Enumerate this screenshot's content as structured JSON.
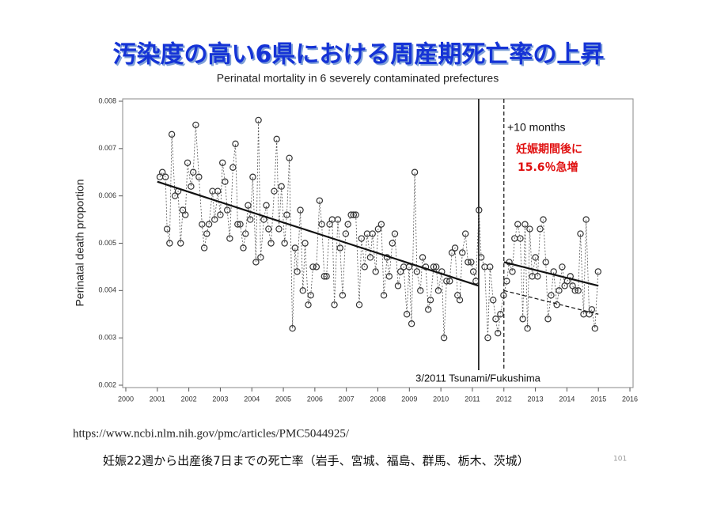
{
  "slide": {
    "title": "汚染度の高い6県における周産期死亡率の上昇",
    "url": "https://www.ncbi.nlm.nih.gov/pmc/articles/PMC5044925/",
    "caption": "妊娠22週から出産後7日までの死亡率（岩手、宮城、福島、群馬、栃木、茨城）",
    "page_number": "101"
  },
  "chart_data": {
    "type": "line",
    "title": "Perinatal mortality in 6 severely contaminated prefectures",
    "y_label": "Perinatal death proportion",
    "xlim": [
      1999.9,
      2016.1
    ],
    "ylim": [
      0.00195,
      0.00805
    ],
    "xticks": [
      2000,
      2001,
      2002,
      2003,
      2004,
      2005,
      2006,
      2007,
      2008,
      2009,
      2010,
      2011,
      2012,
      2013,
      2014,
      2015,
      2016
    ],
    "yticks": [
      0.002,
      0.003,
      0.004,
      0.005,
      0.006,
      0.007,
      0.008
    ],
    "series": [
      {
        "color": "#333333",
        "marker": "circle",
        "line": "dotted",
        "x": [
          2001.08,
          2001.16,
          2001.26,
          2001.31,
          2001.39,
          2001.46,
          2001.56,
          2001.66,
          2001.74,
          2001.81,
          2001.89,
          2001.96,
          2002.07,
          2002.14,
          2002.22,
          2002.32,
          2002.42,
          2002.49,
          2002.57,
          2002.64,
          2002.75,
          2002.82,
          2002.92,
          2003.0,
          2003.07,
          2003.15,
          2003.22,
          2003.3,
          2003.4,
          2003.48,
          2003.55,
          2003.63,
          2003.73,
          2003.8,
          2003.88,
          2003.95,
          2004.03,
          2004.13,
          2004.21,
          2004.28,
          2004.38,
          2004.46,
          2004.53,
          2004.61,
          2004.71,
          2004.79,
          2004.86,
          2004.94,
          2005.04,
          2005.11,
          2005.19,
          2005.29,
          2005.37,
          2005.44,
          2005.54,
          2005.62,
          2005.69,
          2005.79,
          2005.87,
          2005.94,
          2006.05,
          2006.15,
          2006.22,
          2006.3,
          2006.37,
          2006.47,
          2006.55,
          2006.62,
          2006.73,
          2006.8,
          2006.88,
          2006.98,
          2007.05,
          2007.15,
          2007.23,
          2007.3,
          2007.41,
          2007.48,
          2007.58,
          2007.66,
          2007.76,
          2007.83,
          2007.93,
          2008.01,
          2008.11,
          2008.19,
          2008.29,
          2008.36,
          2008.46,
          2008.54,
          2008.64,
          2008.72,
          2008.82,
          2008.92,
          2008.99,
          2009.07,
          2009.17,
          2009.24,
          2009.35,
          2009.42,
          2009.52,
          2009.6,
          2009.67,
          2009.77,
          2009.85,
          2009.92,
          2010.03,
          2010.1,
          2010.18,
          2010.28,
          2010.35,
          2010.45,
          2010.53,
          2010.6,
          2010.68,
          2010.78,
          2010.86,
          2010.96,
          2011.03,
          2011.11,
          2011.21,
          2011.28,
          2011.39,
          2011.49,
          2011.56,
          2011.66,
          2011.74,
          2011.81,
          2011.89,
          2011.99,
          2012.09,
          2012.17,
          2012.27,
          2012.34,
          2012.44,
          2012.52,
          2012.6,
          2012.67,
          2012.75,
          2012.82,
          2012.9,
          2013.0,
          2013.07,
          2013.15,
          2013.25,
          2013.33,
          2013.4,
          2013.5,
          2013.58,
          2013.68,
          2013.75,
          2013.85,
          2013.93,
          2014.01,
          2014.11,
          2014.18,
          2014.26,
          2014.36,
          2014.43,
          2014.53,
          2014.61,
          2014.71,
          2014.79,
          2014.89,
          2014.99
        ],
        "values": [
          0.0064,
          0.0065,
          0.0064,
          0.0053,
          0.005,
          0.0073,
          0.006,
          0.0061,
          0.005,
          0.0057,
          0.0056,
          0.0067,
          0.0062,
          0.0065,
          0.0075,
          0.0064,
          0.0054,
          0.0049,
          0.0052,
          0.0054,
          0.0061,
          0.0055,
          0.0061,
          0.0056,
          0.0067,
          0.0063,
          0.0057,
          0.0051,
          0.0066,
          0.0071,
          0.0054,
          0.0054,
          0.0049,
          0.0052,
          0.0058,
          0.0055,
          0.0064,
          0.0046,
          0.0076,
          0.0047,
          0.0055,
          0.0058,
          0.0053,
          0.005,
          0.0061,
          0.0072,
          0.0053,
          0.0062,
          0.005,
          0.0056,
          0.0068,
          0.0032,
          0.0049,
          0.0044,
          0.0057,
          0.004,
          0.005,
          0.0037,
          0.0039,
          0.0045,
          0.0045,
          0.0059,
          0.0054,
          0.0043,
          0.0043,
          0.0054,
          0.0055,
          0.0037,
          0.0055,
          0.0049,
          0.0039,
          0.0052,
          0.0054,
          0.0056,
          0.0056,
          0.0056,
          0.0037,
          0.0051,
          0.0045,
          0.0052,
          0.0047,
          0.0052,
          0.0044,
          0.0053,
          0.0054,
          0.0039,
          0.0047,
          0.0043,
          0.005,
          0.0052,
          0.0041,
          0.0044,
          0.0045,
          0.0035,
          0.0045,
          0.0033,
          0.0065,
          0.0044,
          0.004,
          0.0047,
          0.0045,
          0.0036,
          0.0038,
          0.0045,
          0.0045,
          0.004,
          0.0044,
          0.003,
          0.0042,
          0.0042,
          0.0048,
          0.0049,
          0.0039,
          0.0038,
          0.0048,
          0.0052,
          0.0046,
          0.0046,
          0.0044,
          0.0042,
          0.0057,
          0.0047,
          0.0045,
          0.003,
          0.0045,
          0.0038,
          0.0034,
          0.0031,
          0.0035,
          0.0039,
          0.0042,
          0.0046,
          0.0044,
          0.0051,
          0.0054,
          0.0051,
          0.0034,
          0.0054,
          0.0032,
          0.0053,
          0.0043,
          0.0047,
          0.0043,
          0.0053,
          0.0055,
          0.0046,
          0.0034,
          0.0039,
          0.0044,
          0.0037,
          0.004,
          0.0045,
          0.0041,
          0.0042,
          0.0043,
          0.0041,
          0.004,
          0.004,
          0.0052,
          0.0035,
          0.0055,
          0.0035,
          0.0036,
          0.0032,
          0.0044
        ]
      }
    ],
    "trend_lines": [
      {
        "x": [
          2001.0,
          2011.2
        ],
        "values": [
          0.0063,
          0.0041
        ],
        "dashed": false
      },
      {
        "x": [
          2012.0,
          2015.0
        ],
        "values": [
          0.0046,
          0.0041
        ],
        "dashed": false
      },
      {
        "x": [
          2012.0,
          2015.0
        ],
        "values": [
          0.004,
          0.0035
        ],
        "dashed": true
      }
    ],
    "vlines": [
      {
        "x": 2011.2,
        "dashed": false
      },
      {
        "x": 2012.0,
        "dashed": true
      }
    ],
    "annotations": [
      "+10 months",
      "妊娠期間後に",
      "15.6％急増",
      "3/2011 Tsunami/Fukushima"
    ]
  }
}
